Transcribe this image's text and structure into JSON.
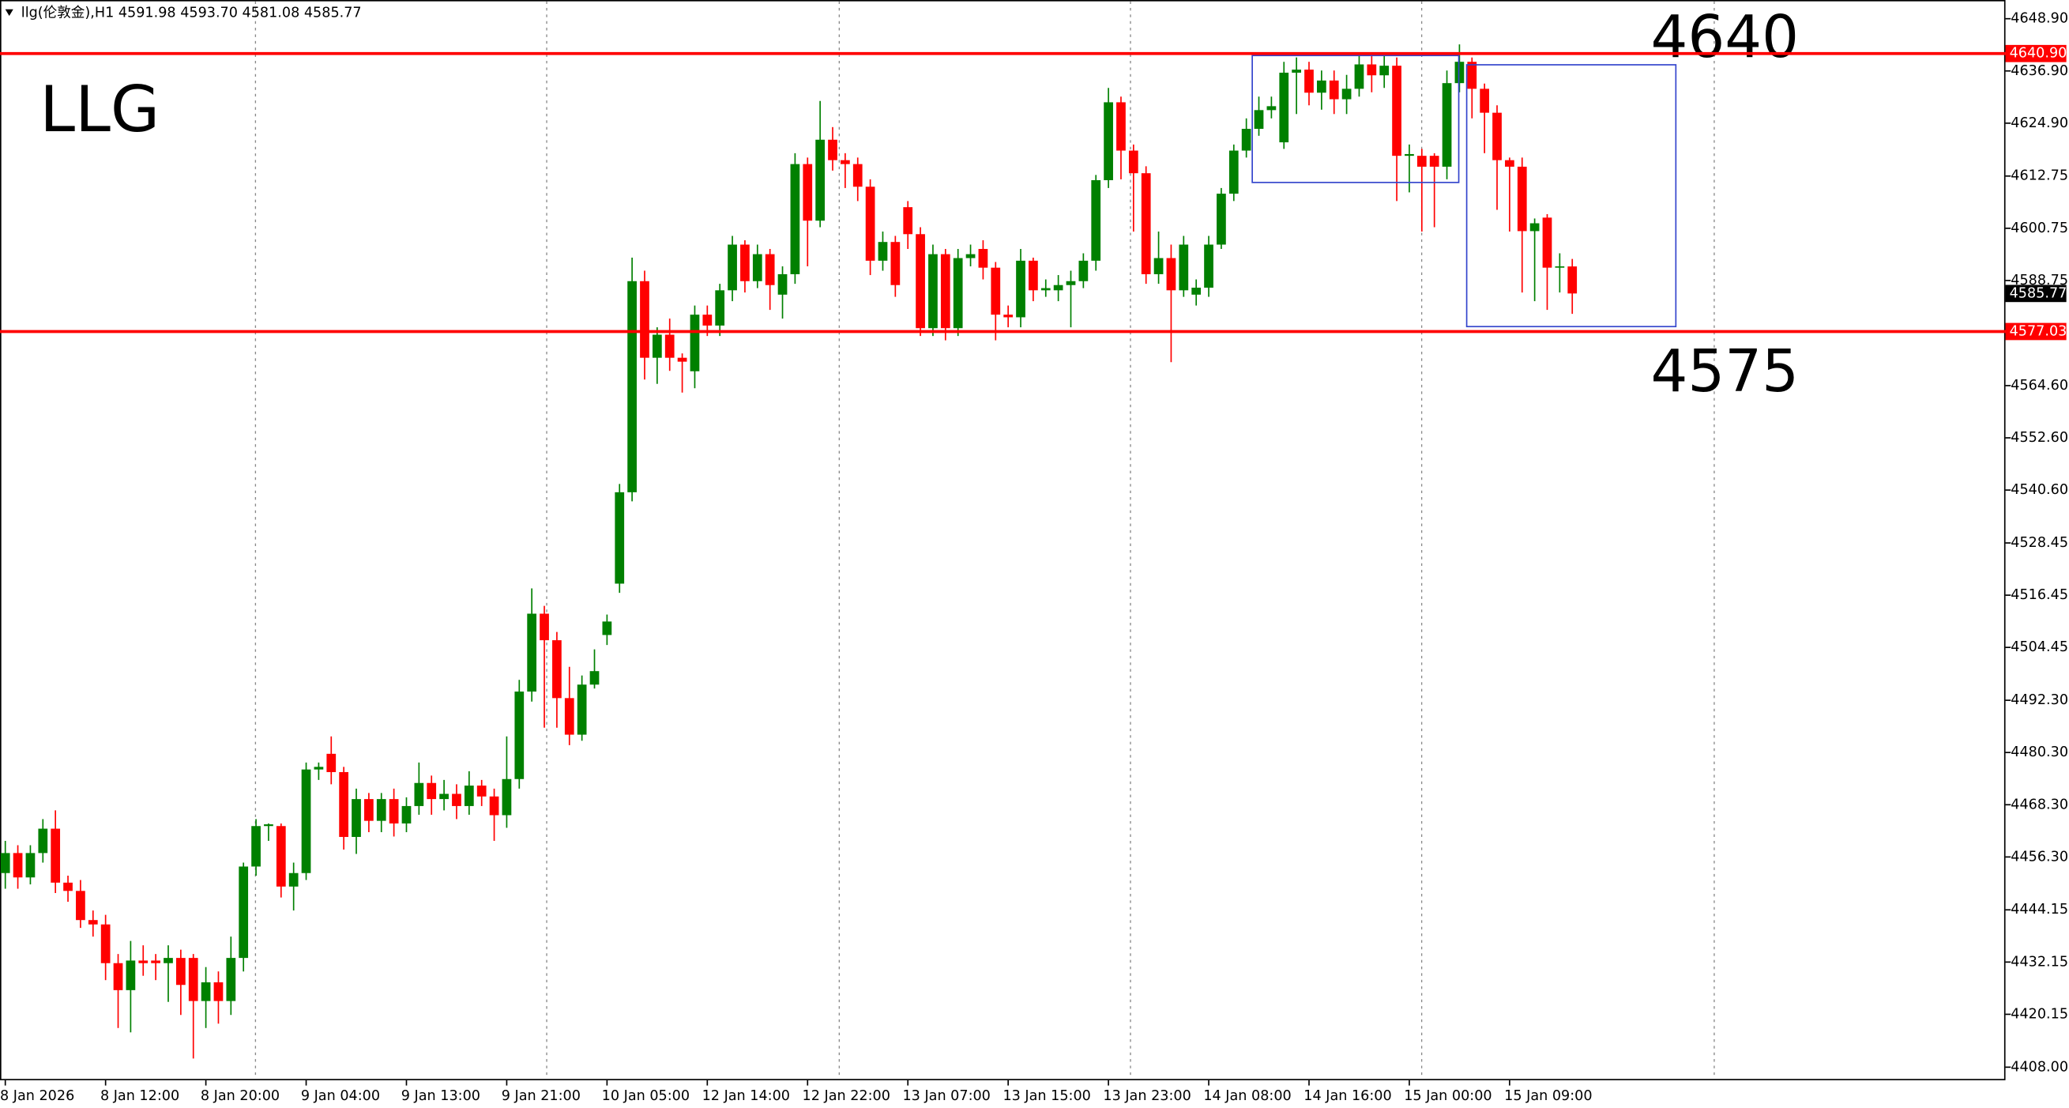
{
  "chart_data": {
    "type": "candlestick",
    "title": "llg(伦敦金),H1  4591.98 4593.70 4581.08 4585.77",
    "annotations": [
      "LLG",
      "4640",
      "4575"
    ],
    "categories": [
      "8 Jan 2026",
      null,
      null,
      null,
      null,
      null,
      null,
      null,
      "8 Jan 12:00",
      null,
      null,
      null,
      null,
      null,
      null,
      null,
      "8 Jan 20:00",
      null,
      null,
      null,
      null,
      null,
      null,
      null,
      "9 Jan 04:00",
      null,
      null,
      null,
      null,
      null,
      null,
      null,
      "9 Jan 13:00",
      null,
      null,
      null,
      null,
      null,
      null,
      null,
      "9 Jan 21:00",
      null,
      null,
      null,
      null,
      null,
      null,
      null,
      "10 Jan 05:00",
      null,
      null,
      null,
      null,
      null,
      null,
      null,
      "12 Jan 14:00",
      null,
      null,
      null,
      null,
      null,
      null,
      null,
      "12 Jan 22:00",
      null,
      null,
      null,
      null,
      null,
      null,
      null,
      "13 Jan 07:00",
      null,
      null,
      null,
      null,
      null,
      null,
      null,
      "13 Jan 15:00",
      null,
      null,
      null,
      null,
      null,
      null,
      null,
      "13 Jan 23:00",
      null,
      null,
      null,
      null,
      null,
      null,
      null,
      "14 Jan 08:00",
      null,
      null,
      null,
      null,
      null,
      null,
      null,
      "14 Jan 16:00",
      null,
      null,
      null,
      null,
      null,
      null,
      null,
      "15 Jan 00:00",
      null,
      null,
      null,
      null,
      null,
      null,
      null,
      "15 Jan 09:00",
      null,
      null,
      null,
      null,
      null
    ],
    "open": [
      4452.6,
      4457.2,
      4451.6,
      4457.2,
      4462.8,
      4450.4,
      4448.5,
      4441.8,
      4440.8,
      4431.9,
      4425.7,
      4432.5,
      4432.5,
      4431.9,
      4433.1,
      4433.1,
      4423.2,
      4427.5,
      4423.2,
      4433.1,
      4454.1,
      4463.4,
      4463.4,
      4449.5,
      4452.6,
      4476.4,
      4480.0,
      4475.8,
      4460.9,
      4469.6,
      4464.6,
      4469.6,
      4464.0,
      4468.0,
      4473.3,
      4469.6,
      4470.8,
      4468.0,
      4472.7,
      4470.2,
      4465.9,
      4474.2,
      4494.3,
      4512.2,
      4506.1,
      4492.8,
      4484.4,
      4495.9,
      4507.3,
      4519.1,
      4540.1,
      4588.6,
      4571.0,
      4576.3,
      4571.0,
      4567.9,
      4580.9,
      4578.4,
      4586.5,
      4597.0,
      4588.6,
      4594.8,
      4585.5,
      4590.2,
      4615.5,
      4602.5,
      4621.1,
      4616.4,
      4615.5,
      4610.3,
      4593.3,
      4597.6,
      4605.6,
      4599.4,
      4577.8,
      4594.8,
      4577.8,
      4593.9,
      4596.0,
      4591.7,
      4580.9,
      4580.3,
      4593.3,
      4586.5,
      4586.5,
      4587.7,
      4588.6,
      4593.3,
      4611.8,
      4629.7,
      4618.6,
      4613.4,
      4590.2,
      4593.9,
      4586.5,
      4585.5,
      4587.1,
      4597.0,
      4608.7,
      4618.6,
      4623.6,
      4627.9,
      4620.5,
      4636.5,
      4637.2,
      4631.9,
      4634.7,
      4630.4,
      4632.8,
      4638.4,
      4635.9,
      4638.1,
      4617.4,
      4617.4,
      4617.4,
      4614.9,
      4634.1,
      4639.0,
      4632.8,
      4627.3,
      4616.4,
      4614.9,
      4600.1,
      4603.2,
      4591.7,
      4591.98
    ],
    "high": [
      4460,
      4459,
      4459,
      4465,
      4467,
      4452,
      4451,
      4444,
      4443,
      4434,
      4437,
      4436,
      4434,
      4436,
      4435,
      4434,
      4431,
      4430,
      4438,
      4455,
      4465,
      4464,
      4464,
      4455,
      4478,
      4478,
      4484,
      4477,
      4472,
      4471,
      4471,
      4472,
      4470,
      4478,
      4475,
      4474,
      4473,
      4476,
      4474,
      4472,
      4484,
      4497,
      4518,
      4514,
      4508,
      4500,
      4498,
      4504,
      4512,
      4542,
      4594,
      4591,
      4578,
      4580,
      4572,
      4583,
      4583,
      4588,
      4599,
      4598,
      4597,
      4596,
      4592,
      4618,
      4617,
      4630,
      4624,
      4618,
      4617,
      4612,
      4600,
      4599,
      4607,
      4601,
      4597,
      4596,
      4596,
      4597,
      4598,
      4593,
      4583,
      4596,
      4594,
      4589,
      4590,
      4591,
      4595,
      4613,
      4633,
      4631,
      4620,
      4615,
      4600,
      4597,
      4599,
      4589,
      4599,
      4610,
      4620,
      4626,
      4631,
      4631,
      4639,
      4640,
      4639,
      4637,
      4637,
      4636,
      4641,
      4641,
      4641,
      4640,
      4620,
      4619,
      4618,
      4637,
      4643,
      4640,
      4634,
      4629,
      4617,
      4617,
      4603,
      4604,
      4595,
      4593.7
    ],
    "low": [
      4449,
      4449,
      4450,
      4455,
      4448,
      4446,
      4440,
      4438,
      4428,
      4417,
      4416,
      4429,
      4428,
      4423,
      4420,
      4410,
      4417,
      4418,
      4420,
      4430,
      4452,
      4460,
      4447,
      4444,
      4451,
      4474,
      4473,
      4458,
      4457,
      4462,
      4462,
      4461,
      4462,
      4466,
      4466,
      4467,
      4465,
      4466,
      4468,
      4460,
      4463,
      4472,
      4492,
      4486,
      4486,
      4482,
      4483,
      4495,
      4505,
      4517,
      4538,
      4566,
      4565,
      4568,
      4563,
      4564,
      4576,
      4576,
      4584,
      4586,
      4587,
      4582,
      4580,
      4588,
      4592,
      4601,
      4614,
      4610,
      4607,
      4590,
      4591,
      4585,
      4596,
      4576,
      4576,
      4575,
      4576,
      4592,
      4589,
      4575,
      4578,
      4578,
      4584,
      4585,
      4584,
      4578,
      4587,
      4591,
      4610,
      4612,
      4600,
      4588,
      4588,
      4570,
      4585,
      4583,
      4585,
      4596,
      4607,
      4617,
      4622,
      4626,
      4619,
      4627,
      4629,
      4628,
      4627,
      4627,
      4631,
      4632,
      4633,
      4607,
      4609,
      4600,
      4601,
      4612,
      4632,
      4626,
      4618,
      4605,
      4600,
      4586,
      4584,
      4582,
      4586,
      4581.08
    ],
    "close": [
      4457.2,
      4451.6,
      4457.2,
      4462.8,
      4450.4,
      4448.5,
      4441.8,
      4440.8,
      4431.9,
      4425.7,
      4432.5,
      4431.9,
      4431.9,
      4433.1,
      4426.9,
      4423.2,
      4427.5,
      4423.2,
      4433.1,
      4454.1,
      4463.4,
      4463.8,
      4449.5,
      4452.6,
      4476.4,
      4477.0,
      4475.8,
      4460.9,
      4469.6,
      4464.6,
      4469.6,
      4464.0,
      4468.0,
      4473.3,
      4469.6,
      4470.8,
      4468.0,
      4472.7,
      4470.2,
      4465.9,
      4474.2,
      4494.3,
      4512.2,
      4506.1,
      4492.8,
      4484.4,
      4495.9,
      4499.0,
      4510.4,
      4540.1,
      4588.6,
      4571.0,
      4576.3,
      4571.0,
      4570.1,
      4580.9,
      4578.4,
      4586.5,
      4597.0,
      4588.6,
      4594.8,
      4587.7,
      4590.2,
      4615.5,
      4602.5,
      4621.1,
      4616.4,
      4615.5,
      4610.3,
      4593.3,
      4597.6,
      4587.7,
      4599.4,
      4577.8,
      4594.8,
      4577.8,
      4593.9,
      4594.8,
      4591.7,
      4580.9,
      4580.3,
      4593.3,
      4586.5,
      4587.0,
      4587.7,
      4588.6,
      4593.3,
      4611.8,
      4629.7,
      4618.6,
      4613.4,
      4590.2,
      4593.9,
      4586.5,
      4597.0,
      4587.1,
      4597.0,
      4608.7,
      4618.6,
      4623.6,
      4627.9,
      4628.8,
      4636.5,
      4637.2,
      4631.9,
      4634.7,
      4630.4,
      4632.8,
      4638.4,
      4635.9,
      4638.1,
      4617.4,
      4617.8,
      4614.9,
      4614.9,
      4634.1,
      4639.0,
      4632.8,
      4627.3,
      4616.4,
      4614.9,
      4600.1,
      4601.9,
      4591.7,
      4592.0,
      4585.77
    ],
    "up_color": "#008000",
    "down_color": "#ff0000",
    "ylim": [
      4405.0,
      4653.2
    ],
    "yticks": [
      {
        "value": 4648.9,
        "label": "4648.90"
      },
      {
        "value": 4636.9,
        "label": "4636.90"
      },
      {
        "value": 4624.9,
        "label": "4624.90"
      },
      {
        "value": 4612.75,
        "label": "4612.75"
      },
      {
        "value": 4600.75,
        "label": "4600.75"
      },
      {
        "value": 4588.75,
        "label": "4588.75"
      },
      {
        "value": 4564.6,
        "label": "4564.60"
      },
      {
        "value": 4552.6,
        "label": "4552.60"
      },
      {
        "value": 4540.6,
        "label": "4540.60"
      },
      {
        "value": 4528.45,
        "label": "4528.45"
      },
      {
        "value": 4516.45,
        "label": "4516.45"
      },
      {
        "value": 4504.45,
        "label": "4504.45"
      },
      {
        "value": 4492.3,
        "label": "4492.30"
      },
      {
        "value": 4480.3,
        "label": "4480.30"
      },
      {
        "value": 4468.3,
        "label": "4468.30"
      },
      {
        "value": 4456.3,
        "label": "4456.30"
      },
      {
        "value": 4444.15,
        "label": "4444.15"
      },
      {
        "value": 4432.15,
        "label": "4432.15"
      },
      {
        "value": 4420.15,
        "label": "4420.15"
      },
      {
        "value": 4408.0,
        "label": "4408.00"
      }
    ],
    "hlines": [
      {
        "value": 4640.9,
        "label": "4640.90",
        "color": "#ff0000"
      },
      {
        "value": 4577.03,
        "label": "4577.03",
        "color": "#ff0000"
      }
    ],
    "last_price": 4585.77
  }
}
